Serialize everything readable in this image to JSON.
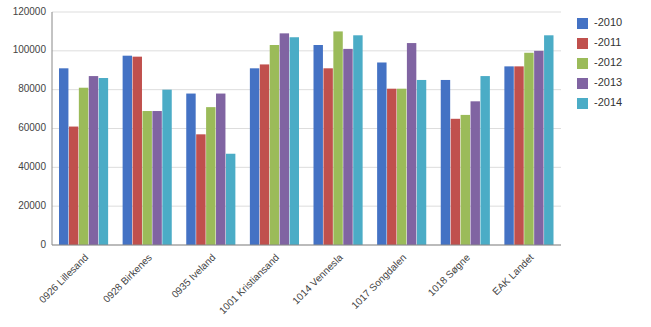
{
  "chart_data": {
    "type": "bar",
    "categories": [
      "0926 Lillesand",
      "0928 Birkenes",
      "0935 Iveland",
      "1001 Kristiansand",
      "1014 Vennesla",
      "1017 Songdalen",
      "1018 Søgne",
      "EAK Landet"
    ],
    "series": [
      {
        "name": "-2010",
        "color": "#4472C4",
        "values": [
          91000,
          97500,
          78000,
          91000,
          103000,
          94000,
          85000,
          92000
        ]
      },
      {
        "name": "-2011",
        "color": "#C0504D",
        "values": [
          61000,
          97000,
          57000,
          93000,
          91000,
          80500,
          65000,
          92000
        ]
      },
      {
        "name": "-2012",
        "color": "#9BBB59",
        "values": [
          81000,
          69000,
          71000,
          103000,
          110000,
          80500,
          67000,
          99000
        ]
      },
      {
        "name": "-2013",
        "color": "#8064A2",
        "values": [
          87000,
          69000,
          78000,
          109000,
          101000,
          104000,
          74000,
          100000
        ]
      },
      {
        "name": "-2014",
        "color": "#4BACC6",
        "values": [
          86000,
          80000,
          47000,
          107000,
          108000,
          85000,
          87000,
          108000
        ]
      }
    ],
    "ylim": [
      0,
      120000
    ],
    "yticks": [
      0,
      20000,
      40000,
      60000,
      80000,
      100000,
      120000
    ],
    "grid": true,
    "legend": "right"
  }
}
